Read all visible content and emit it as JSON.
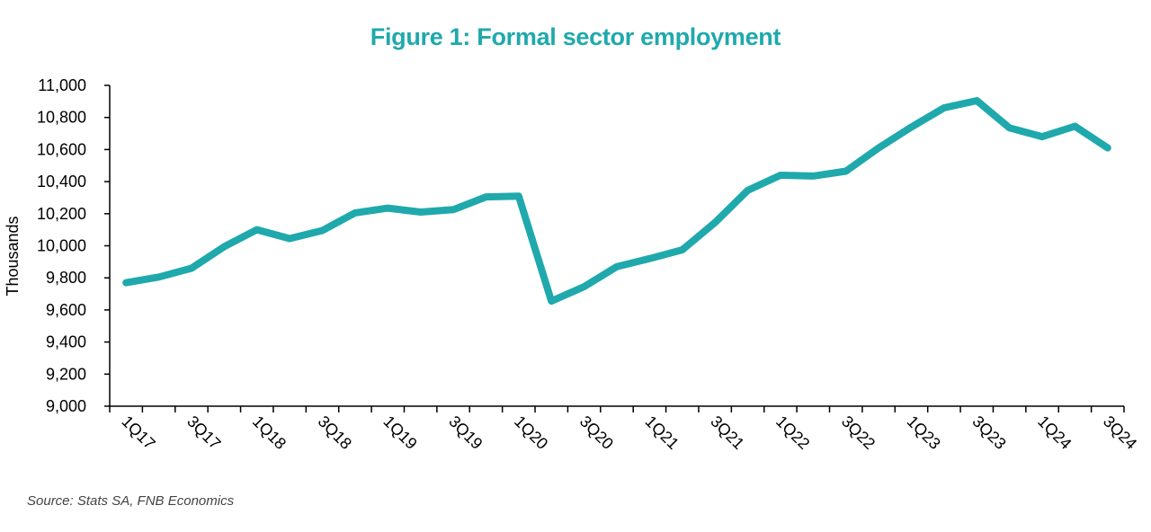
{
  "chart_data": {
    "type": "line",
    "title": "Figure 1: Formal sector employment",
    "ylabel": "Thousands",
    "xlabel": "",
    "ylim": [
      9000,
      11000
    ],
    "yticks": [
      9000,
      9200,
      9400,
      9600,
      9800,
      10000,
      10200,
      10400,
      10600,
      10800,
      11000
    ],
    "ytick_labels": [
      "9,000",
      "9,200",
      "9,400",
      "9,600",
      "9,800",
      "10,000",
      "10,200",
      "10,400",
      "10,600",
      "10,800",
      "11,000"
    ],
    "categories": [
      "1Q17",
      "2Q17",
      "3Q17",
      "4Q17",
      "1Q18",
      "2Q18",
      "3Q18",
      "4Q18",
      "1Q19",
      "2Q19",
      "3Q19",
      "4Q19",
      "1Q20",
      "2Q20",
      "3Q20",
      "4Q20",
      "1Q21",
      "2Q21",
      "3Q21",
      "4Q21",
      "1Q22",
      "2Q22",
      "3Q22",
      "4Q22",
      "1Q23",
      "2Q23",
      "3Q23",
      "4Q23",
      "1Q24",
      "2Q24",
      "3Q24"
    ],
    "xtick_labels": [
      "1Q17",
      "3Q17",
      "1Q18",
      "3Q18",
      "1Q19",
      "3Q19",
      "1Q20",
      "3Q20",
      "1Q21",
      "3Q21",
      "1Q22",
      "3Q22",
      "1Q23",
      "3Q23",
      "1Q24",
      "3Q24"
    ],
    "series": [
      {
        "color": "#1fa9ac",
        "values": [
          9770,
          9805,
          9860,
          9995,
          10100,
          10045,
          10095,
          10205,
          10235,
          10210,
          10225,
          10305,
          10310,
          9655,
          9745,
          9870,
          9920,
          9975,
          10145,
          10345,
          10440,
          10435,
          10465,
          10610,
          10740,
          10860,
          10905,
          10735,
          10680,
          10745,
          10610
        ]
      }
    ],
    "grid": false,
    "legend": "none"
  },
  "source": "Source: Stats SA, FNB Economics",
  "colors": {
    "accent": "#1fa9ac",
    "axis": "#000000"
  }
}
